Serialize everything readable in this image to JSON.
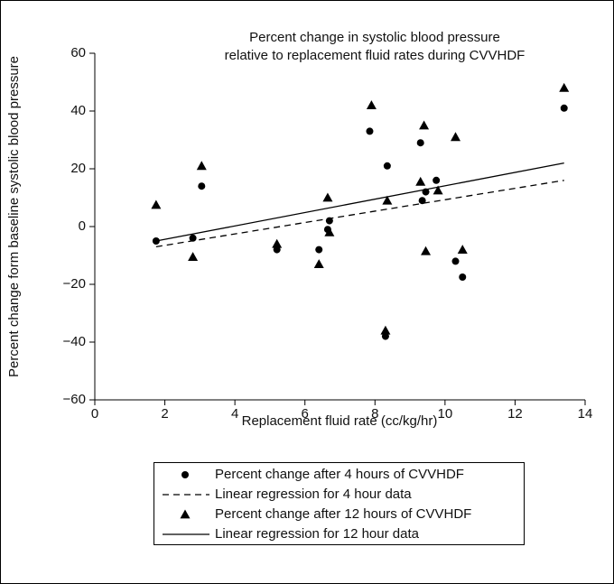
{
  "chart_data": {
    "type": "scatter",
    "title_lines": [
      "Percent change in systolic blood pressure",
      "relative to replacement fluid rates during CVVHDF"
    ],
    "xlabel": "Replacement fluid rate (cc/kg/hr)",
    "ylabel": "Percent change form baseline systolic blood pressure",
    "xlim": [
      0,
      14
    ],
    "xticks": [
      0,
      2,
      4,
      6,
      8,
      10,
      12,
      14
    ],
    "ylim": [
      -60,
      60
    ],
    "yticks": [
      {
        "value": -60,
        "label": "−60"
      },
      {
        "value": -40,
        "label": "−40"
      },
      {
        "value": -20,
        "label": "−20"
      },
      0,
      20,
      40,
      60
    ],
    "series": [
      {
        "name": "Percent change after 4 hours of CVVHDF",
        "type": "scatter",
        "marker": "circle",
        "color": "#000000",
        "x": [
          1.75,
          2.8,
          3.05,
          5.2,
          6.4,
          6.65,
          6.7,
          7.85,
          8.35,
          8.3,
          9.3,
          9.35,
          9.45,
          9.75,
          10.3,
          10.5,
          13.4
        ],
        "values": [
          -5,
          -4,
          14,
          -8,
          -8,
          -1,
          2,
          33,
          21,
          -38,
          29,
          9,
          12,
          16,
          -12,
          -17.5,
          41
        ]
      },
      {
        "name": "Linear regression for 4 hour data",
        "type": "line",
        "dash": "dashed",
        "color": "#000000",
        "x": [
          1.75,
          13.4
        ],
        "values": [
          -7,
          16
        ]
      },
      {
        "name": "Percent change after 12 hours of CVVHDF",
        "type": "scatter",
        "marker": "triangle",
        "color": "#000000",
        "x": [
          1.75,
          2.8,
          3.05,
          5.2,
          6.4,
          6.65,
          6.7,
          7.9,
          8.35,
          8.3,
          9.3,
          9.4,
          9.45,
          9.8,
          10.3,
          10.5,
          13.4
        ],
        "values": [
          7.5,
          -10.5,
          21,
          -6,
          -13,
          10,
          -2,
          42,
          9,
          -36,
          15.5,
          35,
          -8.5,
          12.5,
          31,
          -8,
          48
        ]
      },
      {
        "name": "Linear regression for 12 hour data",
        "type": "line",
        "dash": "solid",
        "color": "#000000",
        "x": [
          1.75,
          13.4
        ],
        "values": [
          -5,
          22
        ]
      }
    ]
  }
}
